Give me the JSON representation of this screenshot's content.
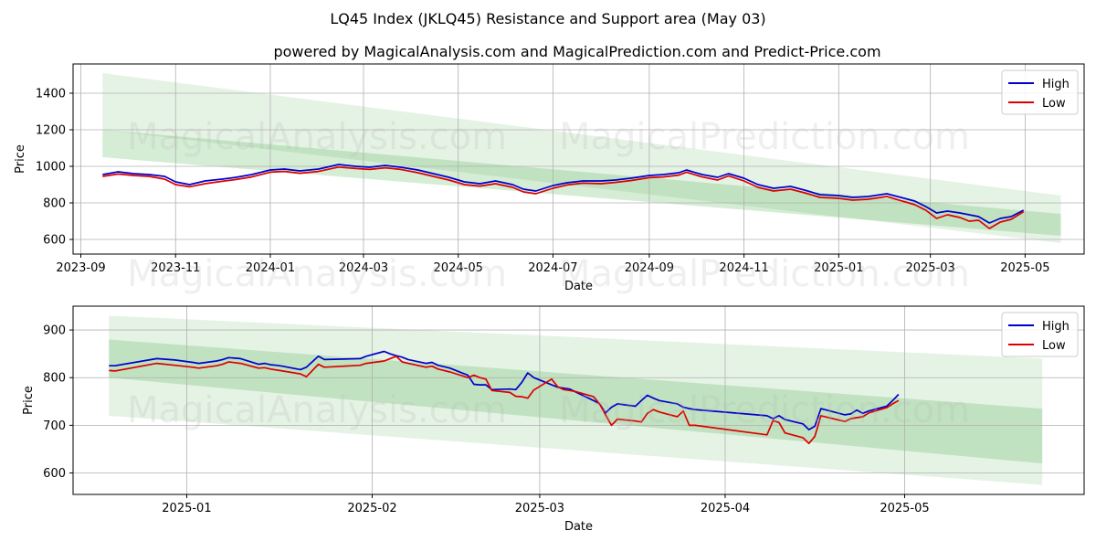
{
  "title": "LQ45 Index (JKLQ45) Resistance and Support area (May 03)",
  "subtitle": "powered by MagicalAnalysis.com and MagicalPrediction.com and Predict-Price.com",
  "watermarks": [
    "MagicalAnalysis.com",
    "MagicalPrediction.com"
  ],
  "colors": {
    "high": "#0000cc",
    "low": "#dd0000",
    "band": "#2ca02c"
  },
  "chart_data": [
    {
      "type": "line",
      "xlabel": "Date",
      "ylabel": "Price",
      "xlim": [
        "2023-08-27",
        "2025-06-08"
      ],
      "ylim": [
        520,
        1560
      ],
      "x_ticks": [
        {
          "date": "2023-09-01",
          "label": "2023-09"
        },
        {
          "date": "2023-11-01",
          "label": "2023-11"
        },
        {
          "date": "2024-01-01",
          "label": "2024-01"
        },
        {
          "date": "2024-03-01",
          "label": "2024-03"
        },
        {
          "date": "2024-05-01",
          "label": "2024-05"
        },
        {
          "date": "2024-07-01",
          "label": "2024-07"
        },
        {
          "date": "2024-09-01",
          "label": "2024-09"
        },
        {
          "date": "2024-11-01",
          "label": "2024-11"
        },
        {
          "date": "2025-01-01",
          "label": "2025-01"
        },
        {
          "date": "2025-03-01",
          "label": "2025-03"
        },
        {
          "date": "2025-05-01",
          "label": "2025-05"
        }
      ],
      "y_ticks": [
        600,
        800,
        1000,
        1200,
        1400
      ],
      "grid": true,
      "legend": "top-right",
      "bands": [
        {
          "x0": "2023-09-15",
          "x1": "2025-05-24",
          "upper": [
            1510,
            840
          ],
          "lower": [
            1200,
            580
          ],
          "opacity": 0.12
        },
        {
          "x0": "2023-09-15",
          "x1": "2025-05-24",
          "upper": [
            1200,
            740
          ],
          "lower": [
            1050,
            620
          ],
          "opacity": 0.2
        }
      ],
      "series": [
        {
          "name": "High",
          "x": [
            "2023-09-15",
            "2023-09-25",
            "2023-10-05",
            "2023-10-15",
            "2023-10-25",
            "2023-11-01",
            "2023-11-10",
            "2023-11-20",
            "2023-12-01",
            "2023-12-10",
            "2023-12-20",
            "2024-01-01",
            "2024-01-10",
            "2024-01-20",
            "2024-02-01",
            "2024-02-14",
            "2024-02-25",
            "2024-03-05",
            "2024-03-15",
            "2024-03-25",
            "2024-04-05",
            "2024-04-15",
            "2024-04-25",
            "2024-05-05",
            "2024-05-15",
            "2024-05-25",
            "2024-06-05",
            "2024-06-12",
            "2024-06-20",
            "2024-07-01",
            "2024-07-10",
            "2024-07-20",
            "2024-08-01",
            "2024-08-10",
            "2024-08-20",
            "2024-09-01",
            "2024-09-10",
            "2024-09-20",
            "2024-09-25",
            "2024-10-05",
            "2024-10-15",
            "2024-10-22",
            "2024-11-01",
            "2024-11-10",
            "2024-11-20",
            "2024-12-01",
            "2024-12-10",
            "2024-12-20",
            "2025-01-01",
            "2025-01-10",
            "2025-01-20",
            "2025-02-01",
            "2025-02-10",
            "2025-02-19",
            "2025-02-26",
            "2025-03-05",
            "2025-03-12",
            "2025-03-20",
            "2025-03-26",
            "2025-04-01",
            "2025-04-08",
            "2025-04-15",
            "2025-04-22",
            "2025-04-30"
          ],
          "values": [
            955,
            970,
            960,
            955,
            945,
            915,
            900,
            920,
            930,
            940,
            955,
            980,
            985,
            975,
            985,
            1010,
            1000,
            995,
            1005,
            995,
            980,
            960,
            940,
            915,
            905,
            920,
            900,
            875,
            865,
            895,
            910,
            920,
            920,
            925,
            935,
            950,
            955,
            965,
            980,
            955,
            940,
            960,
            935,
            900,
            880,
            890,
            870,
            845,
            840,
            830,
            835,
            850,
            830,
            810,
            780,
            745,
            755,
            745,
            735,
            725,
            690,
            715,
            725,
            760
          ]
        },
        {
          "name": "Low",
          "x": [
            "2023-09-15",
            "2023-09-25",
            "2023-10-05",
            "2023-10-15",
            "2023-10-25",
            "2023-11-01",
            "2023-11-10",
            "2023-11-20",
            "2023-12-01",
            "2023-12-10",
            "2023-12-20",
            "2024-01-01",
            "2024-01-10",
            "2024-01-20",
            "2024-02-01",
            "2024-02-14",
            "2024-02-25",
            "2024-03-05",
            "2024-03-15",
            "2024-03-25",
            "2024-04-05",
            "2024-04-15",
            "2024-04-25",
            "2024-05-05",
            "2024-05-15",
            "2024-05-25",
            "2024-06-05",
            "2024-06-12",
            "2024-06-20",
            "2024-07-01",
            "2024-07-10",
            "2024-07-20",
            "2024-08-01",
            "2024-08-10",
            "2024-08-20",
            "2024-09-01",
            "2024-09-10",
            "2024-09-20",
            "2024-09-25",
            "2024-10-05",
            "2024-10-15",
            "2024-10-22",
            "2024-11-01",
            "2024-11-10",
            "2024-11-20",
            "2024-12-01",
            "2024-12-10",
            "2024-12-20",
            "2025-01-01",
            "2025-01-10",
            "2025-01-20",
            "2025-02-01",
            "2025-02-10",
            "2025-02-19",
            "2025-02-26",
            "2025-03-05",
            "2025-03-12",
            "2025-03-20",
            "2025-03-26",
            "2025-04-01",
            "2025-04-08",
            "2025-04-15",
            "2025-04-22",
            "2025-04-30"
          ],
          "values": [
            945,
            958,
            950,
            945,
            930,
            900,
            888,
            905,
            918,
            928,
            942,
            968,
            972,
            962,
            972,
            996,
            988,
            983,
            992,
            983,
            965,
            945,
            925,
            900,
            892,
            905,
            885,
            860,
            850,
            880,
            898,
            908,
            905,
            912,
            922,
            938,
            942,
            952,
            968,
            942,
            925,
            948,
            920,
            885,
            865,
            875,
            855,
            830,
            825,
            815,
            820,
            835,
            812,
            790,
            760,
            715,
            735,
            720,
            700,
            705,
            660,
            695,
            710,
            752
          ]
        }
      ]
    },
    {
      "type": "line",
      "xlabel": "Date",
      "ylabel": "Price",
      "xlim": [
        "2024-12-13",
        "2025-05-31"
      ],
      "ylim": [
        555,
        950
      ],
      "x_ticks": [
        {
          "date": "2025-01-01",
          "label": "2025-01"
        },
        {
          "date": "2025-02-01",
          "label": "2025-02"
        },
        {
          "date": "2025-03-01",
          "label": "2025-03"
        },
        {
          "date": "2025-04-01",
          "label": "2025-04"
        },
        {
          "date": "2025-05-01",
          "label": "2025-05"
        }
      ],
      "y_ticks": [
        600,
        700,
        800,
        900
      ],
      "grid": true,
      "legend": "top-right",
      "bands": [
        {
          "x0": "2024-12-19",
          "x1": "2025-05-24",
          "upper": [
            930,
            840
          ],
          "lower": [
            720,
            575
          ],
          "opacity": 0.12
        },
        {
          "x0": "2024-12-19",
          "x1": "2025-05-24",
          "upper": [
            880,
            735
          ],
          "lower": [
            800,
            620
          ],
          "opacity": 0.2
        }
      ],
      "series": [
        {
          "name": "High",
          "x": [
            "2024-12-19",
            "2024-12-20",
            "2024-12-27",
            "2024-12-30",
            "2025-01-02",
            "2025-01-03",
            "2025-01-06",
            "2025-01-07",
            "2025-01-08",
            "2025-01-10",
            "2025-01-13",
            "2025-01-14",
            "2025-01-15",
            "2025-01-16",
            "2025-01-17",
            "2025-01-20",
            "2025-01-21",
            "2025-01-23",
            "2025-01-24",
            "2025-01-30",
            "2025-01-31",
            "2025-02-03",
            "2025-02-04",
            "2025-02-05",
            "2025-02-06",
            "2025-02-07",
            "2025-02-10",
            "2025-02-11",
            "2025-02-12",
            "2025-02-14",
            "2025-02-17",
            "2025-02-18",
            "2025-02-19",
            "2025-02-20",
            "2025-02-21",
            "2025-02-24",
            "2025-02-25",
            "2025-02-26",
            "2025-02-27",
            "2025-02-28",
            "2025-03-03",
            "2025-03-04",
            "2025-03-05",
            "2025-03-06",
            "2025-03-07",
            "2025-03-10",
            "2025-03-11",
            "2025-03-12",
            "2025-03-13",
            "2025-03-14",
            "2025-03-17",
            "2025-03-18",
            "2025-03-19",
            "2025-03-20",
            "2025-03-21",
            "2025-03-24",
            "2025-03-25",
            "2025-03-26",
            "2025-03-27",
            "2025-04-08",
            "2025-04-09",
            "2025-04-10",
            "2025-04-11",
            "2025-04-14",
            "2025-04-15",
            "2025-04-16",
            "2025-04-17",
            "2025-04-21",
            "2025-04-22",
            "2025-04-23",
            "2025-04-24",
            "2025-04-25",
            "2025-04-28",
            "2025-04-29",
            "2025-04-30"
          ],
          "values": [
            825,
            825,
            840,
            837,
            832,
            830,
            835,
            838,
            842,
            840,
            828,
            830,
            827,
            826,
            824,
            817,
            822,
            845,
            838,
            840,
            845,
            855,
            850,
            846,
            843,
            838,
            830,
            832,
            826,
            820,
            805,
            786,
            785,
            785,
            775,
            776,
            775,
            790,
            810,
            800,
            785,
            780,
            778,
            776,
            770,
            752,
            745,
            726,
            738,
            745,
            740,
            752,
            763,
            757,
            752,
            745,
            738,
            735,
            733,
            720,
            714,
            720,
            712,
            703,
            691,
            698,
            735,
            722,
            724,
            732,
            725,
            730,
            740,
            752,
            765
          ]
        },
        {
          "name": "Low",
          "x": [
            "2024-12-19",
            "2024-12-20",
            "2024-12-27",
            "2024-12-30",
            "2025-01-02",
            "2025-01-03",
            "2025-01-06",
            "2025-01-07",
            "2025-01-08",
            "2025-01-10",
            "2025-01-13",
            "2025-01-14",
            "2025-01-15",
            "2025-01-16",
            "2025-01-17",
            "2025-01-20",
            "2025-01-21",
            "2025-01-23",
            "2025-01-24",
            "2025-01-30",
            "2025-01-31",
            "2025-02-03",
            "2025-02-04",
            "2025-02-05",
            "2025-02-06",
            "2025-02-07",
            "2025-02-10",
            "2025-02-11",
            "2025-02-12",
            "2025-02-14",
            "2025-02-17",
            "2025-02-18",
            "2025-02-19",
            "2025-02-20",
            "2025-02-21",
            "2025-02-24",
            "2025-02-25",
            "2025-02-26",
            "2025-02-27",
            "2025-02-28",
            "2025-03-03",
            "2025-03-04",
            "2025-03-05",
            "2025-03-06",
            "2025-03-07",
            "2025-03-10",
            "2025-03-11",
            "2025-03-12",
            "2025-03-13",
            "2025-03-14",
            "2025-03-17",
            "2025-03-18",
            "2025-03-19",
            "2025-03-20",
            "2025-03-21",
            "2025-03-24",
            "2025-03-25",
            "2025-03-26",
            "2025-03-27",
            "2025-04-08",
            "2025-04-09",
            "2025-04-10",
            "2025-04-11",
            "2025-04-14",
            "2025-04-15",
            "2025-04-16",
            "2025-04-17",
            "2025-04-21",
            "2025-04-22",
            "2025-04-23",
            "2025-04-24",
            "2025-04-25",
            "2025-04-28",
            "2025-04-29",
            "2025-04-30"
          ],
          "values": [
            815,
            814,
            830,
            826,
            822,
            820,
            825,
            828,
            833,
            830,
            820,
            821,
            818,
            816,
            814,
            808,
            802,
            828,
            822,
            826,
            830,
            835,
            840,
            845,
            833,
            830,
            822,
            824,
            818,
            812,
            800,
            805,
            800,
            797,
            773,
            769,
            761,
            760,
            757,
            774,
            797,
            781,
            775,
            773,
            771,
            760,
            745,
            722,
            700,
            713,
            709,
            707,
            725,
            733,
            728,
            718,
            730,
            700,
            700,
            680,
            710,
            706,
            684,
            674,
            662,
            677,
            720,
            708,
            714,
            716,
            718,
            726,
            737,
            745,
            752
          ]
        }
      ]
    }
  ]
}
